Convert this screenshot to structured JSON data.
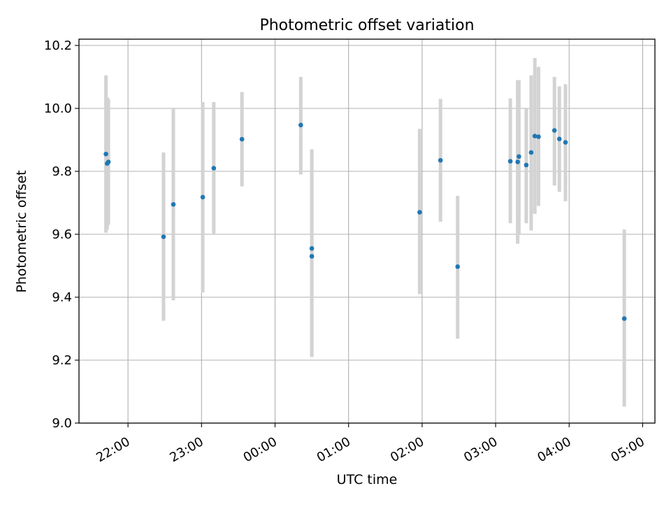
{
  "chart_data": {
    "type": "scatter",
    "title": "Photometric offset variation",
    "xlabel": "UTC time",
    "ylabel": "Photometric offset",
    "x_tick_labels": [
      "22:00",
      "23:00",
      "00:00",
      "01:00",
      "02:00",
      "03:00",
      "04:00",
      "05:00"
    ],
    "x_ticks": [
      "22:00",
      "23:00",
      "00:00",
      "01:00",
      "02:00",
      "03:00",
      "04:00",
      "05:00"
    ],
    "xlim": [
      "21:20",
      "05:10"
    ],
    "y_ticks": [
      9.0,
      9.2,
      9.4,
      9.6,
      9.8,
      10.0,
      10.2
    ],
    "y_tick_labels": [
      "9.0",
      "9.2",
      "9.4",
      "9.6",
      "9.8",
      "10.0",
      "10.2"
    ],
    "ylim": [
      9.0,
      10.22
    ],
    "grid": true,
    "point_color": "#1f77b4",
    "errorbar_color": "#d3d3d3",
    "points": [
      {
        "x": "21:42",
        "y": 9.855,
        "ylo": 9.605,
        "yhi": 10.105
      },
      {
        "x": "21:43",
        "y": 9.825,
        "ylo": 9.615,
        "yhi": 10.035
      },
      {
        "x": "21:44",
        "y": 9.83,
        "ylo": 9.63,
        "yhi": 10.03
      },
      {
        "x": "22:29",
        "y": 9.592,
        "ylo": 9.325,
        "yhi": 9.86
      },
      {
        "x": "22:37",
        "y": 9.695,
        "ylo": 9.39,
        "yhi": 10.0
      },
      {
        "x": "23:01",
        "y": 9.718,
        "ylo": 9.415,
        "yhi": 10.02
      },
      {
        "x": "23:10",
        "y": 9.81,
        "ylo": 9.6,
        "yhi": 10.02
      },
      {
        "x": "23:33",
        "y": 9.902,
        "ylo": 9.752,
        "yhi": 10.052
      },
      {
        "x": "00:21",
        "y": 9.947,
        "ylo": 9.79,
        "yhi": 10.1
      },
      {
        "x": "00:30",
        "y": 9.555,
        "ylo": 9.21,
        "yhi": 9.87
      },
      {
        "x": "00:30",
        "y": 9.53,
        "ylo": 9.21,
        "yhi": 9.87
      },
      {
        "x": "01:58",
        "y": 9.67,
        "ylo": 9.41,
        "yhi": 9.935
      },
      {
        "x": "02:15",
        "y": 9.835,
        "ylo": 9.64,
        "yhi": 10.03
      },
      {
        "x": "02:29",
        "y": 9.497,
        "ylo": 9.268,
        "yhi": 9.722
      },
      {
        "x": "03:12",
        "y": 9.832,
        "ylo": 9.635,
        "yhi": 10.032
      },
      {
        "x": "03:18",
        "y": 9.83,
        "ylo": 9.57,
        "yhi": 10.09
      },
      {
        "x": "03:19",
        "y": 9.847,
        "ylo": 9.6,
        "yhi": 10.09
      },
      {
        "x": "03:25",
        "y": 9.82,
        "ylo": 9.635,
        "yhi": 10.0
      },
      {
        "x": "03:29",
        "y": 9.86,
        "ylo": 9.612,
        "yhi": 10.105
      },
      {
        "x": "03:32",
        "y": 9.912,
        "ylo": 9.665,
        "yhi": 10.16
      },
      {
        "x": "03:35",
        "y": 9.91,
        "ylo": 9.69,
        "yhi": 10.132
      },
      {
        "x": "03:48",
        "y": 9.93,
        "ylo": 9.755,
        "yhi": 10.1
      },
      {
        "x": "03:52",
        "y": 9.903,
        "ylo": 9.735,
        "yhi": 10.07
      },
      {
        "x": "03:57",
        "y": 9.892,
        "ylo": 9.705,
        "yhi": 10.077
      },
      {
        "x": "04:45",
        "y": 9.332,
        "ylo": 9.052,
        "yhi": 9.615
      }
    ]
  }
}
